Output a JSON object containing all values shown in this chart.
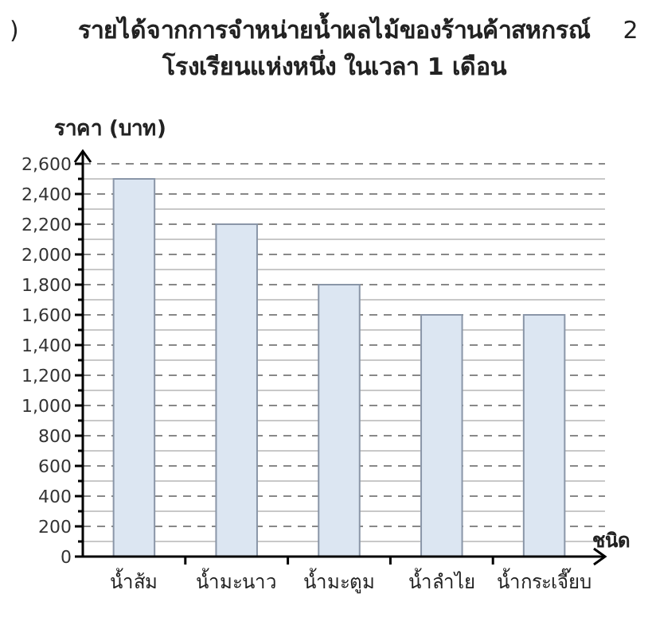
{
  "chart_data": {
    "type": "bar",
    "title": "รายได้จากการจำหน่ายน้ำผลไม้ของร้านค้าสหกรณ์\nโรงเรียนแห่งหนึ่ง ในเวลา 1 เดือน",
    "ylabel": "ราคา (บาท)",
    "xlabel": "ชนิด",
    "annotations": [
      ")",
      "2"
    ],
    "categories": [
      "น้ำส้ม",
      "น้ำมะนาว",
      "น้ำมะตูม",
      "น้ำลำไย",
      "น้ำกระเจี๊ยบ"
    ],
    "values": [
      2500,
      2200,
      1800,
      1600,
      1600
    ],
    "color": "#dce6f2",
    "ylim": [
      0,
      2600
    ],
    "yticks": [
      0,
      {
        "value": 100,
        "label": null
      },
      {
        "value": 200,
        "label": "200"
      },
      {
        "value": 300,
        "label": null
      },
      {
        "value": 400,
        "label": "400"
      },
      {
        "value": 500,
        "label": null
      },
      {
        "value": 600,
        "label": "600"
      },
      {
        "value": 700,
        "label": null
      },
      {
        "value": 800,
        "label": "800"
      },
      {
        "value": 900,
        "label": null
      },
      {
        "value": 1000,
        "label": "1,000"
      },
      {
        "value": 1100,
        "label": null
      },
      {
        "value": 1200,
        "label": "1,200"
      },
      {
        "value": 1300,
        "label": null
      },
      {
        "value": 1400,
        "label": "1,400"
      },
      {
        "value": 1500,
        "label": null
      },
      {
        "value": 1600,
        "label": "1,600"
      },
      {
        "value": 1700,
        "label": null
      },
      {
        "value": 1800,
        "label": "1,800"
      },
      {
        "value": 1900,
        "label": null
      },
      {
        "value": 2000,
        "label": "2,000"
      },
      {
        "value": 2100,
        "label": null
      },
      {
        "value": 2200,
        "label": "2,200"
      },
      {
        "value": 2300,
        "label": null
      },
      {
        "value": 2400,
        "label": "2,400"
      },
      {
        "value": 2500,
        "label": null
      },
      {
        "value": 2600,
        "label": "2,600"
      }
    ],
    "grid": true
  }
}
